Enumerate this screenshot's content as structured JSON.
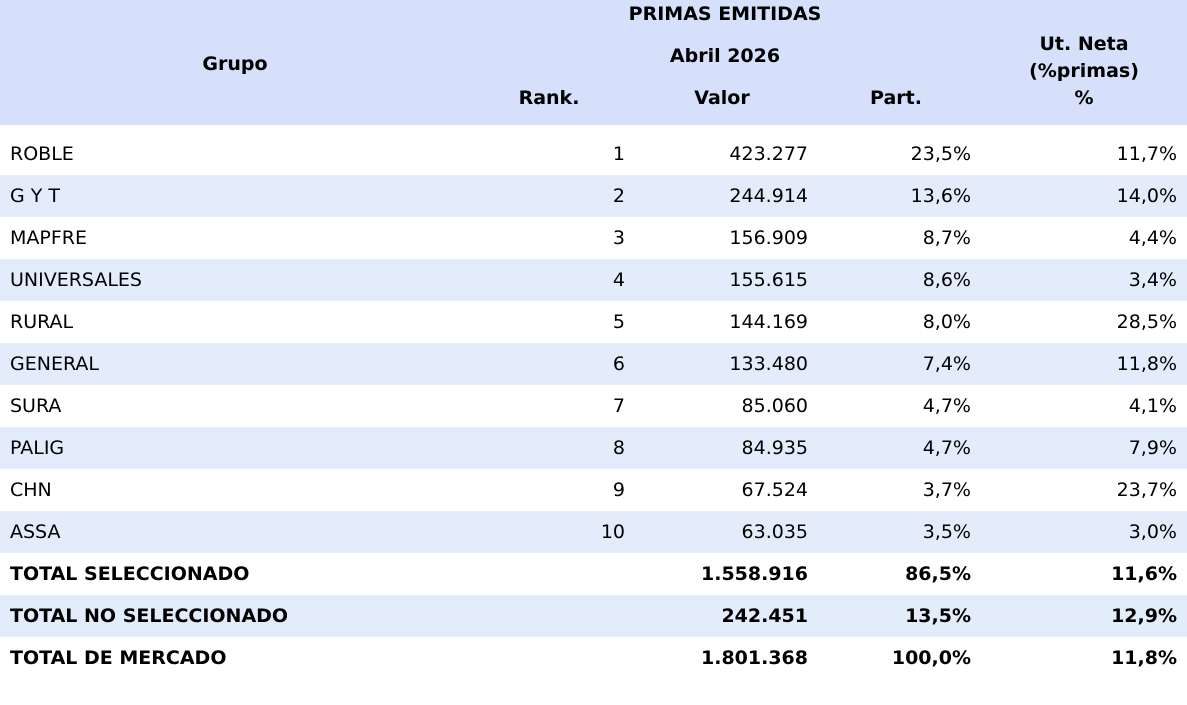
{
  "header": {
    "title": "PRIMAS EMITIDAS",
    "period": "Abril 2026",
    "group": "Grupo",
    "columns": [
      "Rank.",
      "Valor",
      "Part."
    ],
    "net_profit": [
      "Ut. Neta",
      "(%primas)",
      "%"
    ]
  },
  "table": {
    "rows": [
      [
        "ROBLE",
        1,
        "423.277",
        "23,5%",
        "11,7%"
      ],
      [
        "G Y T",
        2,
        "244.914",
        "13,6%",
        "14,0%"
      ],
      [
        "MAPFRE",
        3,
        "156.909",
        "8,7%",
        "4,4%"
      ],
      [
        "UNIVERSALES",
        4,
        "155.615",
        "8,6%",
        "3,4%"
      ],
      [
        "RURAL",
        5,
        "144.169",
        "8,0%",
        "28,5%"
      ],
      [
        "GENERAL",
        6,
        "133.480",
        "7,4%",
        "11,8%"
      ],
      [
        "SURA",
        7,
        "85.060",
        "4,7%",
        "4,1%"
      ],
      [
        "PALIG",
        8,
        "84.935",
        "4,7%",
        "7,9%"
      ],
      [
        "CHN",
        9,
        "67.524",
        "3,7%",
        "23,7%"
      ],
      [
        "ASSA",
        10,
        "63.035",
        "3,5%",
        "3,0%"
      ]
    ],
    "totals": [
      [
        "TOTAL SELECCIONADO",
        "1.558.916",
        "86,5%",
        "11,6%"
      ],
      [
        "TOTAL NO SELECCIONADO",
        "242.451",
        "13,5%",
        "12,9%"
      ],
      [
        "TOTAL DE MERCADO",
        "1.801.368",
        "100,0%",
        "11,8%"
      ]
    ]
  }
}
